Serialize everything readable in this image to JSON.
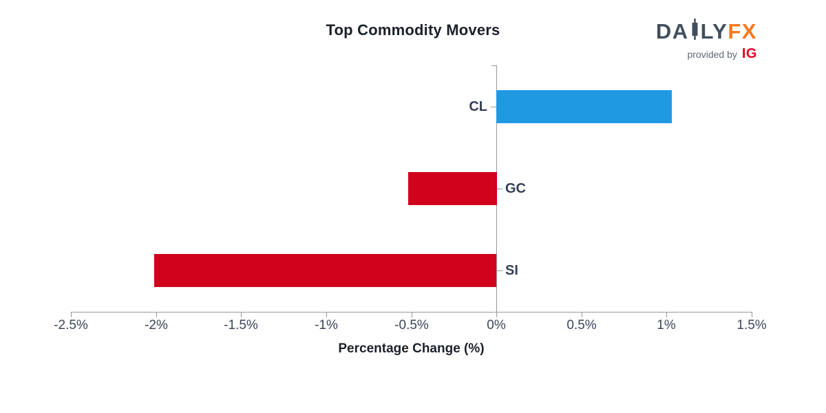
{
  "header": {
    "logo": {
      "daily_prefix": "DA",
      "daily_suffix": "LY",
      "fx": "FX",
      "provided_by": "provided by",
      "ig": "IG",
      "colors": {
        "daily": "#414e5e",
        "fx": "#f5791d",
        "provided_by": "#5c6977",
        "ig": "#e6001e"
      }
    }
  },
  "chart_data": {
    "type": "bar",
    "orientation": "horizontal",
    "title": "Top Commodity Movers",
    "xlabel": "Percentage Change (%)",
    "categories": [
      "CL",
      "GC",
      "SI"
    ],
    "values": [
      1.03,
      -0.52,
      -2.01
    ],
    "bar_colors": [
      "#2099e3",
      "#d0021c",
      "#d0021c"
    ],
    "positive_color": "#2099e3",
    "negative_color": "#d0021c",
    "xlim": [
      -2.5,
      1.5
    ],
    "x_ticks": [
      {
        "label": "-2.5%",
        "value": -2.5
      },
      {
        "label": "-2%",
        "value": -2.0
      },
      {
        "label": "-1.5%",
        "value": -1.5
      },
      {
        "label": "-1%",
        "value": -1.0
      },
      {
        "label": "-0.5%",
        "value": -0.5
      },
      {
        "label": "0%",
        "value": 0.0
      },
      {
        "label": "0.5%",
        "value": 0.5
      },
      {
        "label": "1%",
        "value": 1.0
      },
      {
        "label": "1.5%",
        "value": 1.5
      }
    ],
    "grid": false,
    "legend": false,
    "axis_color": "#979797",
    "tick_label_color": "#3b4559",
    "category_label_color": "#333f54"
  }
}
